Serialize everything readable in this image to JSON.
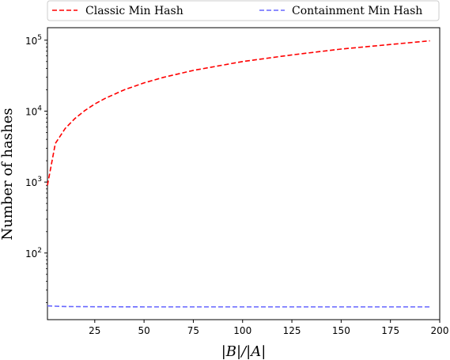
{
  "chart_data": {
    "type": "line",
    "title": "",
    "xlabel": "|B|/|A|",
    "ylabel": "Number of hashes",
    "xlim": [
      1,
      200
    ],
    "ylim": [
      11.5,
      150000
    ],
    "yscale": "log",
    "grid": false,
    "legend_position": "top",
    "x_ticks": [
      25,
      50,
      75,
      100,
      125,
      150,
      175,
      200
    ],
    "y_ticks": [
      {
        "value": 100,
        "base": "10",
        "exp": "2"
      },
      {
        "value": 1000,
        "base": "10",
        "exp": "3"
      },
      {
        "value": 10000,
        "base": "10",
        "exp": "4"
      },
      {
        "value": 100000,
        "base": "10",
        "exp": "5"
      }
    ],
    "series": [
      {
        "name": "Classic Min Hash",
        "color": "#ff0000",
        "dash": "dashed",
        "points": [
          [
            1,
            900
          ],
          [
            5,
            3500
          ],
          [
            10,
            5700
          ],
          [
            15,
            7900
          ],
          [
            20,
            10200
          ],
          [
            25,
            12600
          ],
          [
            30,
            15000
          ],
          [
            40,
            20000
          ],
          [
            50,
            25000
          ],
          [
            60,
            30000
          ],
          [
            75,
            37500
          ],
          [
            100,
            50000
          ],
          [
            125,
            62000
          ],
          [
            150,
            75000
          ],
          [
            175,
            87000
          ],
          [
            195,
            98000
          ]
        ]
      },
      {
        "name": "Containment Min Hash",
        "color": "#6666ff",
        "dash": "dashed",
        "points": [
          [
            1,
            18
          ],
          [
            5,
            17.8
          ],
          [
            10,
            17.6
          ],
          [
            25,
            17.5
          ],
          [
            50,
            17.4
          ],
          [
            100,
            17.4
          ],
          [
            150,
            17.4
          ],
          [
            195,
            17.4
          ]
        ]
      }
    ]
  }
}
